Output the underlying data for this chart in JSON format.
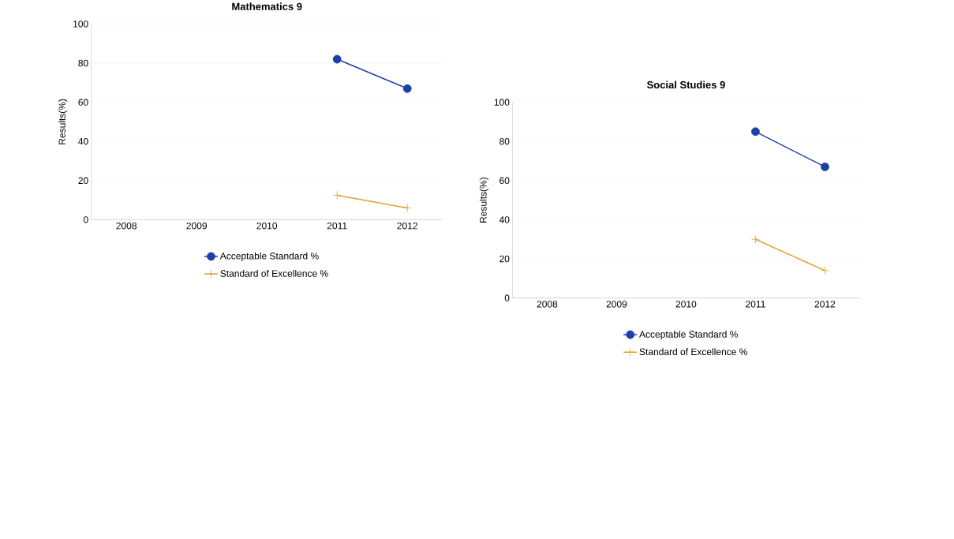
{
  "chart_data": [
    {
      "type": "line",
      "title": "Mathematics 9",
      "ylabel": "Results(%)",
      "categories": [
        "2008",
        "2009",
        "2010",
        "2011",
        "2012"
      ],
      "ylim": [
        0,
        100
      ],
      "yticks": [
        0,
        20,
        40,
        60,
        80,
        100
      ],
      "grid": "y",
      "legend": "bottom",
      "series": [
        {
          "name": "Acceptable Standard %",
          "color": "#1f3fa8",
          "marker": "circle",
          "values": [
            null,
            null,
            null,
            82,
            67
          ]
        },
        {
          "name": "Standard of Excellence %",
          "color": "#e0a030",
          "marker": "cross",
          "values": [
            null,
            null,
            null,
            12.5,
            6
          ]
        }
      ]
    },
    {
      "type": "line",
      "title": "Social Studies 9",
      "ylabel": "Results(%)",
      "categories": [
        "2008",
        "2009",
        "2010",
        "2011",
        "2012"
      ],
      "ylim": [
        0,
        100
      ],
      "yticks": [
        0,
        20,
        40,
        60,
        80,
        100
      ],
      "grid": "y",
      "legend": "bottom",
      "series": [
        {
          "name": "Acceptable Standard %",
          "color": "#1f3fa8",
          "marker": "circle",
          "values": [
            null,
            null,
            null,
            85,
            67
          ]
        },
        {
          "name": "Standard of Excellence %",
          "color": "#e0a030",
          "marker": "cross",
          "values": [
            null,
            null,
            null,
            30,
            14
          ]
        }
      ]
    }
  ]
}
